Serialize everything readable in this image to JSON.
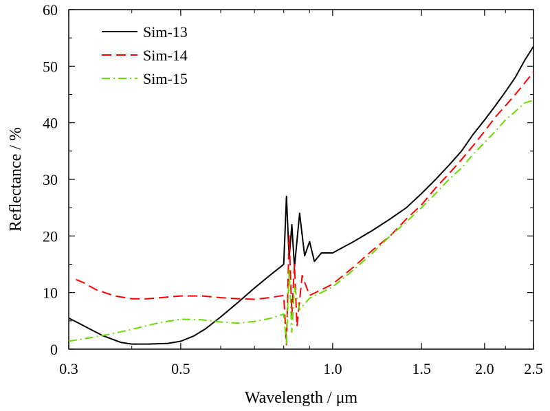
{
  "chart_data": {
    "type": "line",
    "xlabel": "Wavelength / μm",
    "ylabel": "Reflectance / %",
    "xscale": "log",
    "xlim": [
      0.3,
      2.5
    ],
    "ylim": [
      0,
      60
    ],
    "xticks": [
      {
        "value": 0.3,
        "label": "0.3"
      },
      {
        "value": 0.5,
        "label": "0.5"
      },
      {
        "value": 1.0,
        "label": "1.0"
      },
      {
        "value": 1.5,
        "label": "1.5"
      },
      {
        "value": 2.0,
        "label": "2.0"
      },
      {
        "value": 2.5,
        "label": "2.5"
      }
    ],
    "yticks": [
      {
        "value": 0,
        "label": "0"
      },
      {
        "value": 10,
        "label": "10"
      },
      {
        "value": 20,
        "label": "20"
      },
      {
        "value": 30,
        "label": "30"
      },
      {
        "value": 40,
        "label": "40"
      },
      {
        "value": 50,
        "label": "50"
      },
      {
        "value": 60,
        "label": "60"
      }
    ],
    "grid": false,
    "legend_position": "top-left",
    "series": [
      {
        "name": "Sim-13",
        "color": "#000000",
        "dash": "solid",
        "points": [
          [
            0.3,
            5.5
          ],
          [
            0.32,
            4.2
          ],
          [
            0.35,
            2.4
          ],
          [
            0.38,
            1.2
          ],
          [
            0.4,
            0.9
          ],
          [
            0.43,
            0.9
          ],
          [
            0.47,
            1.0
          ],
          [
            0.5,
            1.4
          ],
          [
            0.53,
            2.3
          ],
          [
            0.56,
            3.6
          ],
          [
            0.6,
            5.7
          ],
          [
            0.65,
            8.3
          ],
          [
            0.7,
            10.8
          ],
          [
            0.75,
            13.0
          ],
          [
            0.79,
            14.6
          ],
          [
            0.8,
            15.0
          ],
          [
            0.81,
            27.0
          ],
          [
            0.82,
            16.0
          ],
          [
            0.83,
            22.0
          ],
          [
            0.84,
            14.5
          ],
          [
            0.86,
            24.0
          ],
          [
            0.88,
            16.5
          ],
          [
            0.9,
            19.0
          ],
          [
            0.92,
            15.5
          ],
          [
            0.95,
            17.0
          ],
          [
            1.0,
            17.0
          ],
          [
            1.1,
            19.0
          ],
          [
            1.2,
            21.0
          ],
          [
            1.3,
            23.0
          ],
          [
            1.4,
            25.0
          ],
          [
            1.5,
            27.5
          ],
          [
            1.6,
            30.0
          ],
          [
            1.7,
            32.5
          ],
          [
            1.8,
            35.0
          ],
          [
            1.9,
            38.0
          ],
          [
            2.0,
            40.5
          ],
          [
            2.1,
            43.0
          ],
          [
            2.2,
            45.5
          ],
          [
            2.3,
            48.0
          ],
          [
            2.4,
            51.0
          ],
          [
            2.5,
            53.5
          ]
        ]
      },
      {
        "name": "Sim-14",
        "color": "#ff0000",
        "dash": "dashed",
        "points": [
          [
            0.31,
            12.3
          ],
          [
            0.32,
            11.8
          ],
          [
            0.34,
            10.5
          ],
          [
            0.37,
            9.4
          ],
          [
            0.4,
            8.9
          ],
          [
            0.43,
            8.9
          ],
          [
            0.47,
            9.2
          ],
          [
            0.5,
            9.4
          ],
          [
            0.55,
            9.4
          ],
          [
            0.6,
            9.1
          ],
          [
            0.65,
            8.9
          ],
          [
            0.7,
            8.8
          ],
          [
            0.75,
            9.1
          ],
          [
            0.8,
            9.5
          ],
          [
            0.81,
            0.8
          ],
          [
            0.82,
            20.0
          ],
          [
            0.83,
            6.0
          ],
          [
            0.84,
            15.0
          ],
          [
            0.85,
            4.0
          ],
          [
            0.87,
            13.0
          ],
          [
            0.9,
            9.5
          ],
          [
            0.95,
            10.5
          ],
          [
            1.0,
            11.5
          ],
          [
            1.1,
            14.5
          ],
          [
            1.2,
            17.5
          ],
          [
            1.3,
            20.0
          ],
          [
            1.4,
            23.0
          ],
          [
            1.5,
            25.5
          ],
          [
            1.6,
            28.5
          ],
          [
            1.7,
            31.0
          ],
          [
            1.8,
            33.5
          ],
          [
            1.9,
            36.0
          ],
          [
            2.0,
            38.5
          ],
          [
            2.1,
            41.0
          ],
          [
            2.2,
            43.0
          ],
          [
            2.3,
            45.0
          ],
          [
            2.4,
            47.0
          ],
          [
            2.5,
            49.0
          ]
        ]
      },
      {
        "name": "Sim-15",
        "color": "#66dd00",
        "dash": "dash-dot",
        "points": [
          [
            0.3,
            1.4
          ],
          [
            0.33,
            2.0
          ],
          [
            0.36,
            2.6
          ],
          [
            0.4,
            3.5
          ],
          [
            0.45,
            4.6
          ],
          [
            0.5,
            5.3
          ],
          [
            0.55,
            5.2
          ],
          [
            0.6,
            4.8
          ],
          [
            0.65,
            4.6
          ],
          [
            0.7,
            4.9
          ],
          [
            0.75,
            5.4
          ],
          [
            0.8,
            6.2
          ],
          [
            0.81,
            1.0
          ],
          [
            0.82,
            14.0
          ],
          [
            0.83,
            3.0
          ],
          [
            0.84,
            11.0
          ],
          [
            0.86,
            7.0
          ],
          [
            0.9,
            9.0
          ],
          [
            0.95,
            10.0
          ],
          [
            1.0,
            11.0
          ],
          [
            1.1,
            14.0
          ],
          [
            1.2,
            17.0
          ],
          [
            1.3,
            20.0
          ],
          [
            1.4,
            22.5
          ],
          [
            1.5,
            25.0
          ],
          [
            1.6,
            27.5
          ],
          [
            1.7,
            30.0
          ],
          [
            1.8,
            32.0
          ],
          [
            1.9,
            34.5
          ],
          [
            2.0,
            36.5
          ],
          [
            2.1,
            38.5
          ],
          [
            2.2,
            40.5
          ],
          [
            2.3,
            42.0
          ],
          [
            2.4,
            43.5
          ],
          [
            2.5,
            44.0
          ]
        ]
      }
    ]
  }
}
